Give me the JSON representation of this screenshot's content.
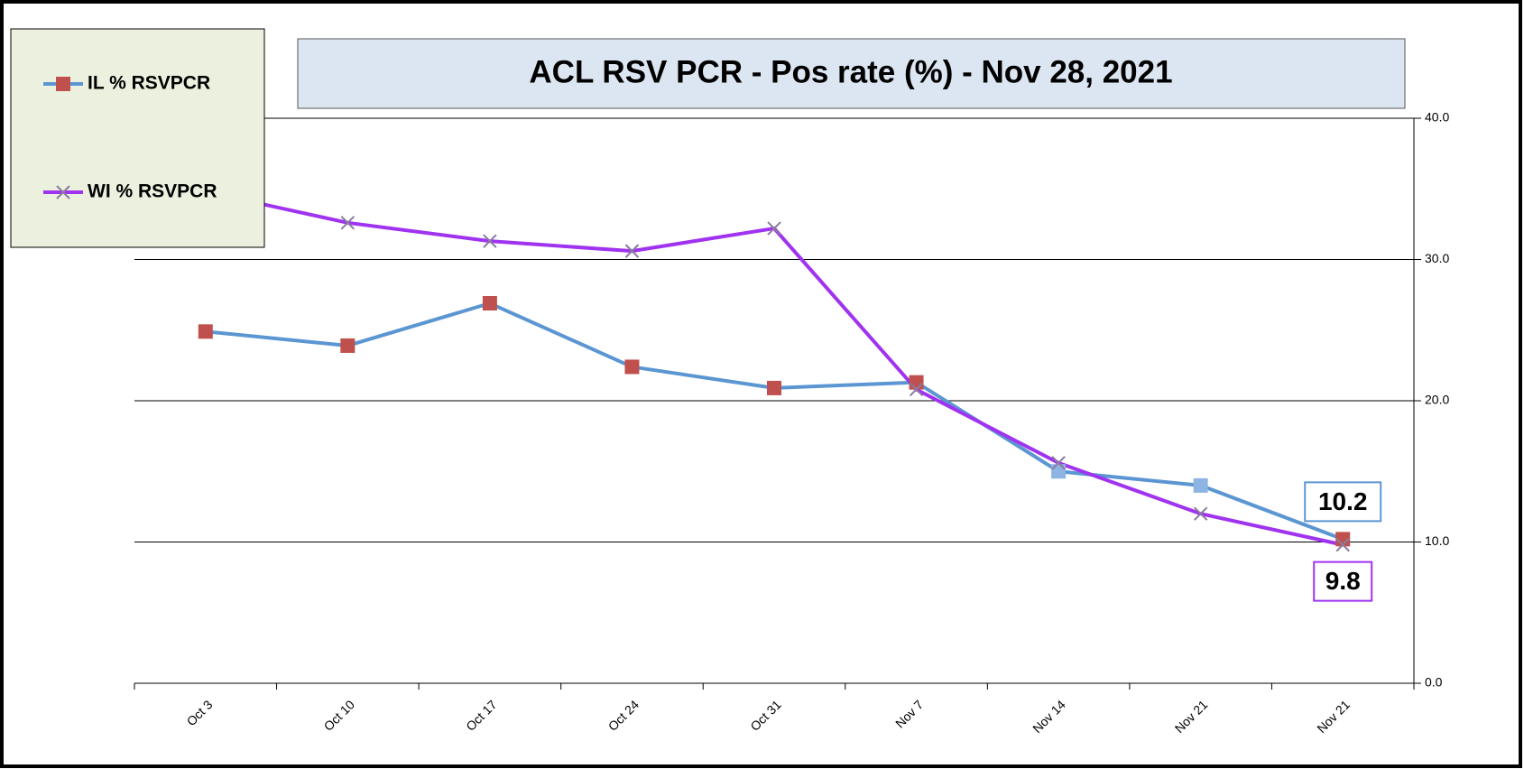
{
  "chart_data": {
    "type": "line",
    "title": "ACL RSV PCR - Pos rate (%) - Nov 28, 2021",
    "categories": [
      "Oct 3",
      "Oct 10",
      "Oct 17",
      "Oct 24",
      "Oct 31",
      "Nov 7",
      "Nov 14",
      "Nov 21",
      "Nov 21"
    ],
    "series": [
      {
        "name": "IL % RSVPCR",
        "color": "#5b96d3",
        "marker": "square",
        "marker_colors": [
          "#c0504d",
          "#c0504d",
          "#c0504d",
          "#c0504d",
          "#c0504d",
          "#c0504d",
          "#8db4e2",
          "#8db4e2",
          "#c0504d"
        ],
        "values": [
          24.9,
          23.9,
          26.9,
          22.4,
          20.9,
          21.3,
          15.0,
          14.0,
          10.2
        ]
      },
      {
        "name": "WI % RSVPCR",
        "color": "#a033f0",
        "marker": "x",
        "marker_colors": [
          "#8a7aa0",
          "#8a7aa0",
          "#8a7aa0",
          "#8a7aa0",
          "#8a7aa0",
          "#8a7aa0",
          "#8a7aa0",
          "#8a7aa0",
          "#8a7aa0"
        ],
        "values": [
          34.8,
          32.6,
          31.3,
          30.6,
          32.2,
          20.8,
          15.6,
          12.0,
          9.8
        ]
      }
    ],
    "ylim": [
      0,
      40
    ],
    "yticks": [
      {
        "value": 0,
        "label": "0.0"
      },
      {
        "value": 10,
        "label": "10.0"
      },
      {
        "value": 20,
        "label": "20.0"
      },
      {
        "value": 30,
        "label": "30.0"
      },
      {
        "value": 40,
        "label": "40.0"
      }
    ],
    "grid": true,
    "legend": "top-left",
    "axis_side": "right"
  }
}
